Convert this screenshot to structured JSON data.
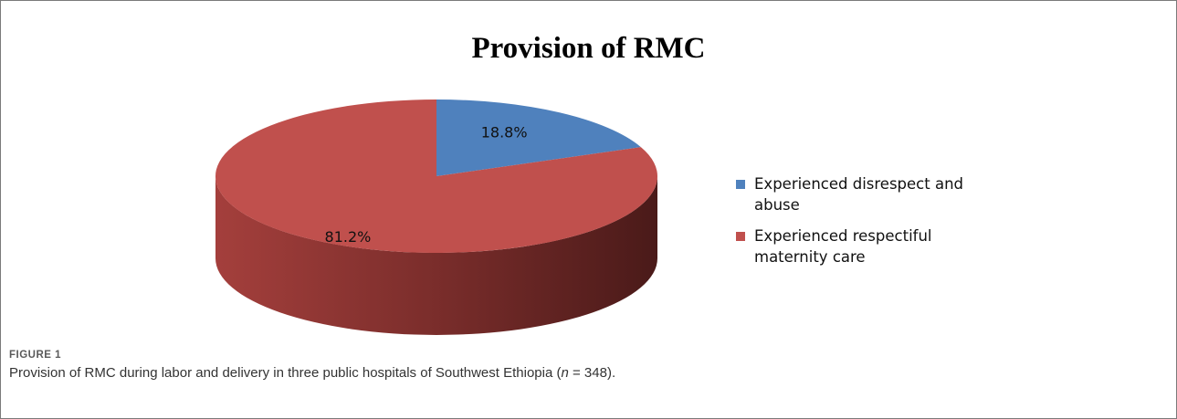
{
  "chart_data": {
    "type": "pie",
    "title": "Provision of RMC",
    "series": [
      {
        "name": "Experienced disrespect and abuse",
        "value": 18.8,
        "label": "18.8%",
        "color": "#4f81bd",
        "legend_lines": [
          "Experienced disrespect and",
          "abuse"
        ]
      },
      {
        "name": "Experienced respectiful maternity care",
        "value": 81.2,
        "label": "81.2%",
        "color": "#c0504d",
        "legend_lines": [
          "Experienced respectiful",
          "maternity care"
        ]
      }
    ],
    "legend_position": "right",
    "style": "3d"
  },
  "figure": {
    "label": "FIGURE 1",
    "caption_pre": "Provision of RMC during labor and delivery in three public hospitals of Southwest Ethiopia (",
    "caption_var": "n",
    "caption_post": " = 348)."
  }
}
